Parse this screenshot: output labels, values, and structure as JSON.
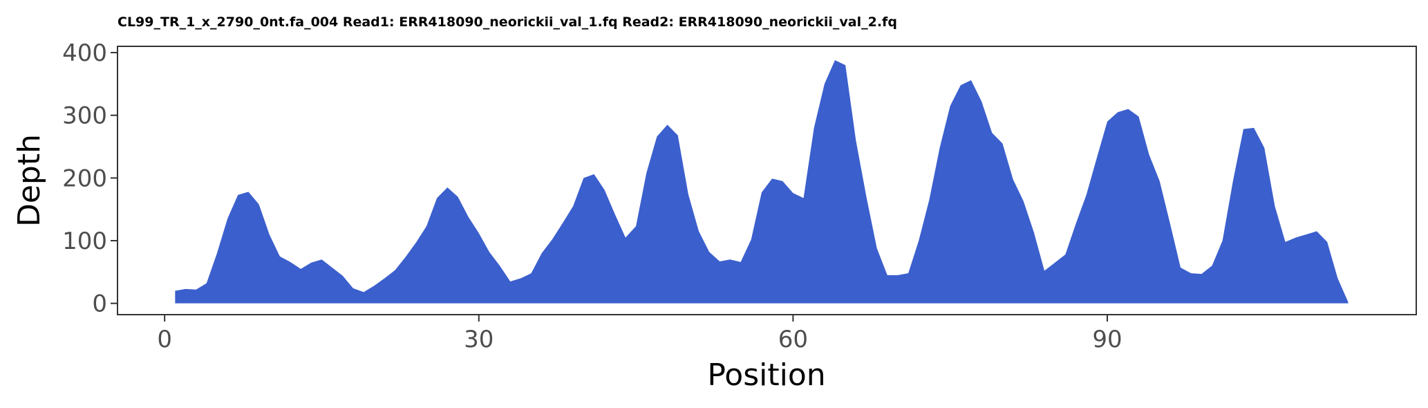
{
  "chart_data": {
    "type": "area",
    "title": "CL99_TR_1_x_2790_0nt.fa_004 Read1: ERR418090_neorickii_val_1.fq Read2: ERR418090_neorickii_val_2.fq",
    "xlabel": "Position",
    "ylabel": "Depth",
    "xlim": [
      -4.5,
      119.5
    ],
    "ylim": [
      -18,
      410
    ],
    "xticks": [
      0,
      30,
      60,
      90
    ],
    "yticks": [
      0,
      100,
      200,
      300,
      400
    ],
    "grid": false,
    "fill_color": "#3b5fcd",
    "x": [
      1,
      2,
      3,
      4,
      5,
      6,
      7,
      8,
      9,
      10,
      11,
      12,
      13,
      14,
      15,
      16,
      17,
      18,
      19,
      20,
      21,
      22,
      23,
      24,
      25,
      26,
      27,
      28,
      29,
      30,
      31,
      32,
      33,
      34,
      35,
      36,
      37,
      38,
      39,
      40,
      41,
      42,
      43,
      44,
      45,
      46,
      47,
      48,
      49,
      50,
      51,
      52,
      53,
      54,
      55,
      56,
      57,
      58,
      59,
      60,
      61,
      62,
      63,
      64,
      65,
      66,
      67,
      68,
      69,
      70,
      71,
      72,
      73,
      74,
      75,
      76,
      77,
      78,
      79,
      80,
      81,
      82,
      83,
      84,
      85,
      86,
      87,
      88,
      89,
      90,
      91,
      92,
      93,
      94,
      95,
      96,
      97,
      98,
      99,
      100,
      101,
      102,
      103,
      104,
      105,
      106,
      107,
      108,
      109,
      110,
      111,
      112,
      113
    ],
    "y": [
      20,
      23,
      22,
      32,
      80,
      135,
      173,
      178,
      158,
      110,
      75,
      66,
      55,
      65,
      70,
      57,
      44,
      24,
      18,
      28,
      40,
      53,
      74,
      97,
      123,
      168,
      185,
      170,
      138,
      112,
      82,
      60,
      35,
      40,
      48,
      80,
      102,
      128,
      155,
      200,
      206,
      181,
      142,
      105,
      123,
      208,
      266,
      285,
      268,
      174,
      115,
      82,
      67,
      70,
      66,
      102,
      177,
      199,
      195,
      176,
      168,
      280,
      350,
      388,
      380,
      260,
      170,
      88,
      45,
      45,
      48,
      100,
      165,
      248,
      315,
      348,
      356,
      322,
      272,
      255,
      198,
      163,
      113,
      52,
      65,
      78,
      127,
      173,
      232,
      290,
      305,
      310,
      298,
      237,
      195,
      127,
      57,
      48,
      47,
      60,
      100,
      195,
      278,
      280,
      248,
      155,
      98,
      105,
      110,
      115,
      98,
      40,
      2
    ]
  }
}
